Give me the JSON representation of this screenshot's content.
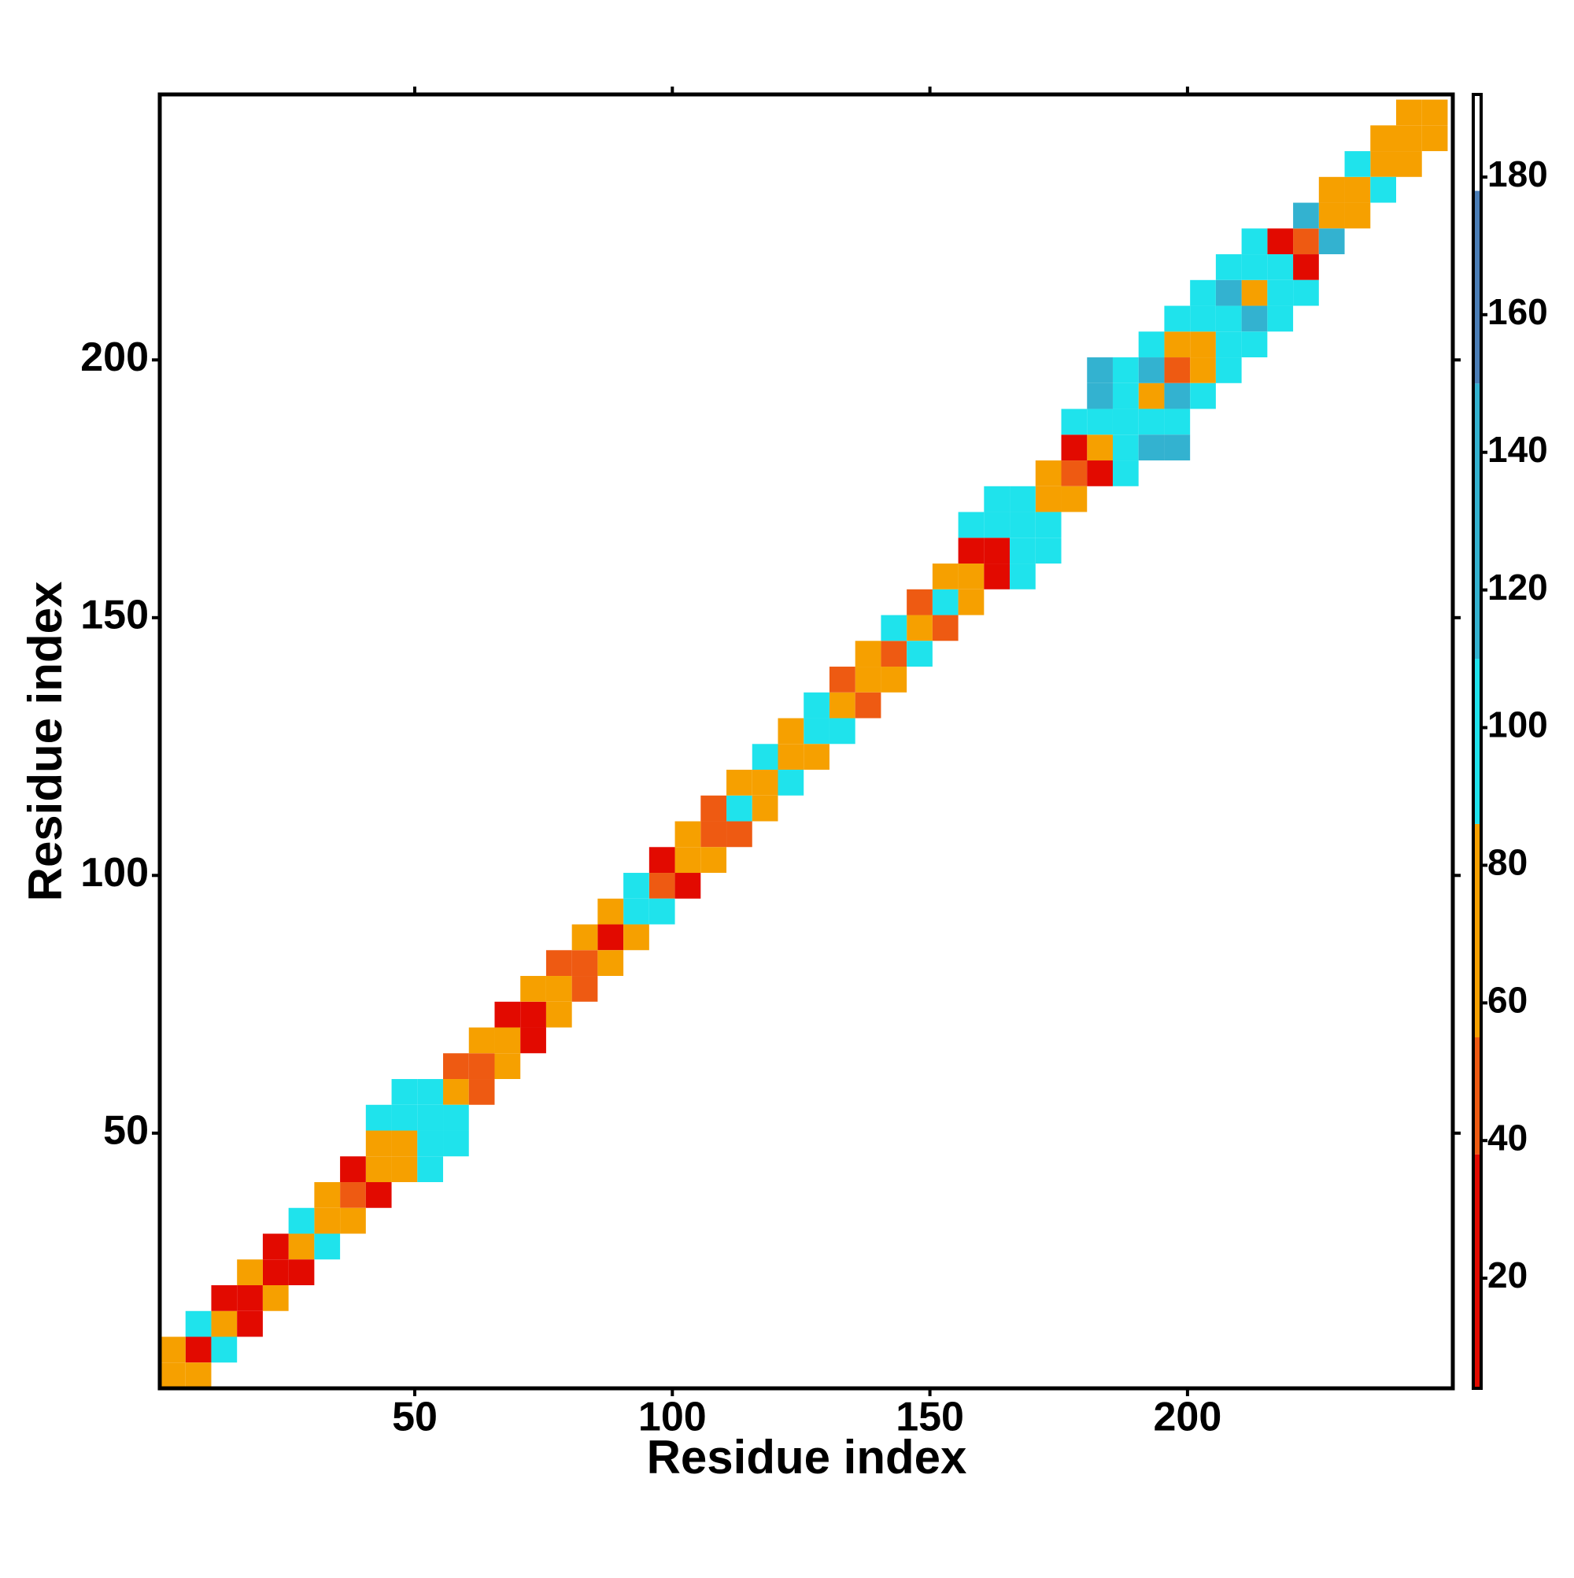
{
  "chart_data": {
    "type": "heatmap",
    "x_label": "Residue index",
    "y_label": "Residue index",
    "xlim": [
      0.5,
      251.5
    ],
    "ylim": [
      0.5,
      251.5
    ],
    "xticks": [
      50,
      100,
      150,
      200
    ],
    "yticks": [
      50,
      100,
      150,
      200
    ],
    "colorbar": {
      "ylim": [
        4,
        192
      ],
      "yticks": [
        20,
        40,
        60,
        80,
        100,
        120,
        140,
        160,
        180
      ],
      "bins": [
        4,
        38,
        55,
        86,
        110,
        150,
        178,
        192
      ],
      "colors": [
        "#e20a00",
        "#ee5a12",
        "#f6a000",
        "#1fe3ec",
        "#33b2d0",
        "#4a7db6",
        "#ffffff"
      ]
    },
    "cells": [
      [
        3,
        3,
        70
      ],
      [
        8,
        8,
        25
      ],
      [
        13,
        13,
        70
      ],
      [
        18,
        18,
        25
      ],
      [
        23,
        23,
        25
      ],
      [
        28,
        28,
        70
      ],
      [
        33,
        33,
        70
      ],
      [
        38,
        38,
        45
      ],
      [
        43,
        43,
        70
      ],
      [
        48,
        48,
        70
      ],
      [
        53,
        53,
        100
      ],
      [
        58,
        58,
        70
      ],
      [
        63,
        63,
        45
      ],
      [
        68,
        68,
        70
      ],
      [
        73,
        73,
        25
      ],
      [
        78,
        78,
        70
      ],
      [
        83,
        83,
        45
      ],
      [
        88,
        88,
        25
      ],
      [
        93,
        93,
        100
      ],
      [
        98,
        98,
        45
      ],
      [
        103,
        103,
        70
      ],
      [
        108,
        108,
        45
      ],
      [
        113,
        113,
        100
      ],
      [
        118,
        118,
        70
      ],
      [
        123,
        123,
        70
      ],
      [
        128,
        128,
        100
      ],
      [
        133,
        133,
        70
      ],
      [
        138,
        138,
        70
      ],
      [
        143,
        143,
        45
      ],
      [
        148,
        148,
        70
      ],
      [
        153,
        153,
        100
      ],
      [
        158,
        158,
        70
      ],
      [
        163,
        163,
        25
      ],
      [
        168,
        168,
        100
      ],
      [
        173,
        173,
        70
      ],
      [
        178,
        178,
        45
      ],
      [
        183,
        183,
        70
      ],
      [
        188,
        188,
        100
      ],
      [
        193,
        193,
        70
      ],
      [
        198,
        198,
        45
      ],
      [
        203,
        203,
        70
      ],
      [
        208,
        208,
        100
      ],
      [
        213,
        213,
        70
      ],
      [
        218,
        218,
        100
      ],
      [
        223,
        223,
        45
      ],
      [
        228,
        228,
        70
      ],
      [
        233,
        233,
        70
      ],
      [
        238,
        238,
        70
      ],
      [
        243,
        243,
        70
      ],
      [
        248,
        248,
        70
      ],
      [
        3,
        8,
        70
      ],
      [
        8,
        3,
        70
      ],
      [
        8,
        13,
        100
      ],
      [
        13,
        8,
        100
      ],
      [
        13,
        18,
        25
      ],
      [
        18,
        13,
        25
      ],
      [
        18,
        23,
        70
      ],
      [
        23,
        18,
        70
      ],
      [
        23,
        28,
        25
      ],
      [
        28,
        23,
        25
      ],
      [
        28,
        33,
        100
      ],
      [
        33,
        28,
        100
      ],
      [
        33,
        38,
        70
      ],
      [
        38,
        33,
        70
      ],
      [
        38,
        43,
        25
      ],
      [
        43,
        38,
        25
      ],
      [
        43,
        48,
        70
      ],
      [
        48,
        43,
        70
      ],
      [
        48,
        53,
        100
      ],
      [
        53,
        48,
        100
      ],
      [
        53,
        58,
        100
      ],
      [
        58,
        53,
        100
      ],
      [
        58,
        63,
        45
      ],
      [
        63,
        58,
        45
      ],
      [
        63,
        68,
        70
      ],
      [
        68,
        63,
        70
      ],
      [
        68,
        73,
        25
      ],
      [
        73,
        68,
        25
      ],
      [
        73,
        78,
        70
      ],
      [
        78,
        73,
        70
      ],
      [
        78,
        83,
        45
      ],
      [
        83,
        78,
        45
      ],
      [
        83,
        88,
        70
      ],
      [
        88,
        83,
        70
      ],
      [
        88,
        93,
        70
      ],
      [
        93,
        88,
        70
      ],
      [
        93,
        98,
        100
      ],
      [
        98,
        93,
        100
      ],
      [
        98,
        103,
        25
      ],
      [
        103,
        98,
        25
      ],
      [
        103,
        108,
        70
      ],
      [
        108,
        103,
        70
      ],
      [
        108,
        113,
        45
      ],
      [
        113,
        108,
        45
      ],
      [
        113,
        118,
        70
      ],
      [
        118,
        113,
        70
      ],
      [
        118,
        123,
        100
      ],
      [
        123,
        118,
        100
      ],
      [
        123,
        128,
        70
      ],
      [
        128,
        123,
        70
      ],
      [
        128,
        133,
        100
      ],
      [
        133,
        128,
        100
      ],
      [
        133,
        138,
        45
      ],
      [
        138,
        133,
        45
      ],
      [
        138,
        143,
        70
      ],
      [
        143,
        138,
        70
      ],
      [
        143,
        148,
        100
      ],
      [
        148,
        143,
        100
      ],
      [
        148,
        153,
        45
      ],
      [
        153,
        148,
        45
      ],
      [
        153,
        158,
        70
      ],
      [
        158,
        153,
        70
      ],
      [
        158,
        163,
        25
      ],
      [
        163,
        158,
        25
      ],
      [
        163,
        168,
        100
      ],
      [
        168,
        163,
        100
      ],
      [
        168,
        173,
        100
      ],
      [
        173,
        168,
        100
      ],
      [
        173,
        178,
        70
      ],
      [
        178,
        173,
        70
      ],
      [
        178,
        183,
        25
      ],
      [
        183,
        178,
        25
      ],
      [
        183,
        188,
        100
      ],
      [
        188,
        183,
        100
      ],
      [
        188,
        193,
        100
      ],
      [
        193,
        188,
        100
      ],
      [
        193,
        198,
        130
      ],
      [
        198,
        193,
        130
      ],
      [
        198,
        203,
        70
      ],
      [
        203,
        198,
        70
      ],
      [
        203,
        208,
        100
      ],
      [
        208,
        203,
        100
      ],
      [
        208,
        213,
        130
      ],
      [
        213,
        208,
        130
      ],
      [
        213,
        218,
        100
      ],
      [
        218,
        213,
        100
      ],
      [
        218,
        223,
        25
      ],
      [
        223,
        218,
        25
      ],
      [
        223,
        228,
        130
      ],
      [
        228,
        223,
        130
      ],
      [
        228,
        233,
        70
      ],
      [
        233,
        228,
        70
      ],
      [
        233,
        238,
        100
      ],
      [
        238,
        233,
        100
      ],
      [
        238,
        243,
        70
      ],
      [
        243,
        238,
        70
      ],
      [
        243,
        248,
        70
      ],
      [
        248,
        243,
        70
      ],
      [
        43,
        53,
        100
      ],
      [
        53,
        43,
        100
      ],
      [
        48,
        58,
        100
      ],
      [
        58,
        48,
        100
      ],
      [
        158,
        168,
        100
      ],
      [
        168,
        158,
        100
      ],
      [
        163,
        173,
        100
      ],
      [
        173,
        163,
        100
      ],
      [
        178,
        188,
        100
      ],
      [
        188,
        178,
        100
      ],
      [
        183,
        193,
        130
      ],
      [
        193,
        183,
        130
      ],
      [
        188,
        198,
        100
      ],
      [
        198,
        188,
        100
      ],
      [
        193,
        203,
        100
      ],
      [
        203,
        193,
        100
      ],
      [
        198,
        208,
        100
      ],
      [
        208,
        198,
        100
      ],
      [
        203,
        213,
        100
      ],
      [
        213,
        203,
        100
      ],
      [
        208,
        218,
        100
      ],
      [
        218,
        208,
        100
      ],
      [
        213,
        223,
        100
      ],
      [
        223,
        213,
        100
      ],
      [
        183,
        198,
        130
      ],
      [
        198,
        183,
        130
      ]
    ]
  }
}
